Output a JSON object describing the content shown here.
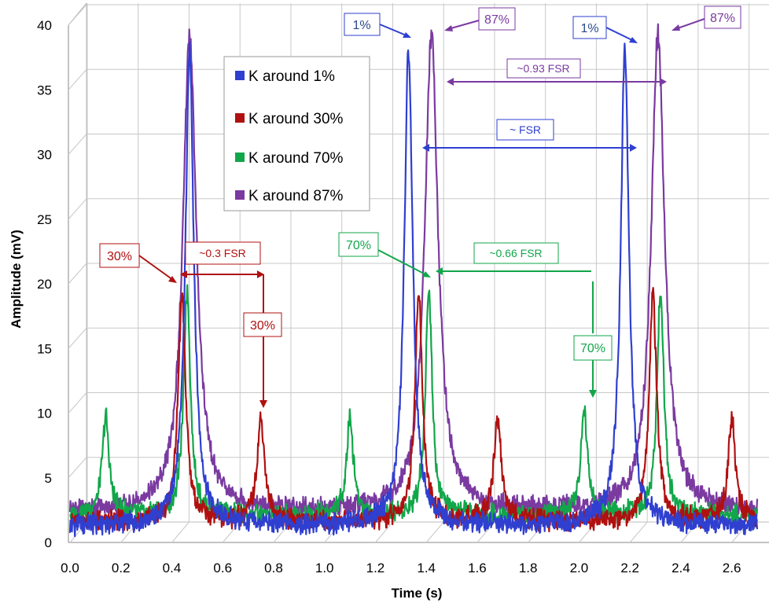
{
  "chart_data": {
    "type": "line",
    "xlabel": "Time (s)",
    "ylabel": "Amplitude (mV)",
    "xlim": [
      0.0,
      2.7
    ],
    "ylim": [
      0,
      40
    ],
    "x_ticks": [
      "0.0",
      "0.2",
      "0.4",
      "0.6",
      "0.8",
      "1.0",
      "1.2",
      "1.4",
      "1.6",
      "1.8",
      "2.0",
      "2.2",
      "2.4",
      "2.6"
    ],
    "y_ticks": [
      "0",
      "5",
      "10",
      "15",
      "20",
      "25",
      "30",
      "35",
      "40"
    ],
    "grid": true,
    "legend_position": "upper-center",
    "colors": {
      "blue": "#2f3fd0",
      "red": "#b01010",
      "green": "#12a64a",
      "purple": "#7a3aa0",
      "grid": "#c8c8c8",
      "ann_blue_text": "#2a4a8a"
    },
    "series": [
      {
        "name": "K around 1%",
        "color": "#2f3fd0",
        "baseline": 1.3,
        "peaks": [
          {
            "x": 0.47,
            "y": 38.0,
            "w": 0.02
          },
          {
            "x": 1.33,
            "y": 38.0,
            "w": 0.02
          },
          {
            "x": 2.18,
            "y": 38.0,
            "w": 0.02
          }
        ]
      },
      {
        "name": "K around 30%",
        "color": "#b01010",
        "baseline": 1.6,
        "peaks": [
          {
            "x": 0.44,
            "y": 19.0,
            "w": 0.018
          },
          {
            "x": 0.75,
            "y": 9.5,
            "w": 0.018
          },
          {
            "x": 1.37,
            "y": 19.0,
            "w": 0.018
          },
          {
            "x": 1.68,
            "y": 9.5,
            "w": 0.018
          },
          {
            "x": 2.29,
            "y": 19.0,
            "w": 0.018
          },
          {
            "x": 2.6,
            "y": 9.5,
            "w": 0.018
          }
        ]
      },
      {
        "name": "K around 70%",
        "color": "#12a64a",
        "baseline": 2.1,
        "peaks": [
          {
            "x": 0.14,
            "y": 9.7,
            "w": 0.016
          },
          {
            "x": 0.46,
            "y": 19.6,
            "w": 0.016
          },
          {
            "x": 1.1,
            "y": 9.7,
            "w": 0.016
          },
          {
            "x": 1.41,
            "y": 19.6,
            "w": 0.016
          },
          {
            "x": 2.02,
            "y": 10.3,
            "w": 0.016
          },
          {
            "x": 2.32,
            "y": 19.6,
            "w": 0.016
          }
        ]
      },
      {
        "name": "K around 87%",
        "color": "#7a3aa0",
        "baseline": 2.4,
        "peaks": [
          {
            "x": 0.47,
            "y": 39.2,
            "w": 0.032
          },
          {
            "x": 1.42,
            "y": 39.2,
            "w": 0.032
          },
          {
            "x": 2.31,
            "y": 39.2,
            "w": 0.032
          }
        ]
      }
    ],
    "annotations": {
      "blue_1a": "1%",
      "purple_87a": "87%",
      "blue_1b": "1%",
      "purple_87b": "87%",
      "fsr_093": "~0.93 FSR",
      "fsr_1": "~ FSR",
      "red_30a": "30%",
      "fsr_03": "~0.3 FSR",
      "red_30b": "30%",
      "green_70a": "70%",
      "fsr_066": "~0.66 FSR",
      "green_70b": "70%"
    }
  }
}
